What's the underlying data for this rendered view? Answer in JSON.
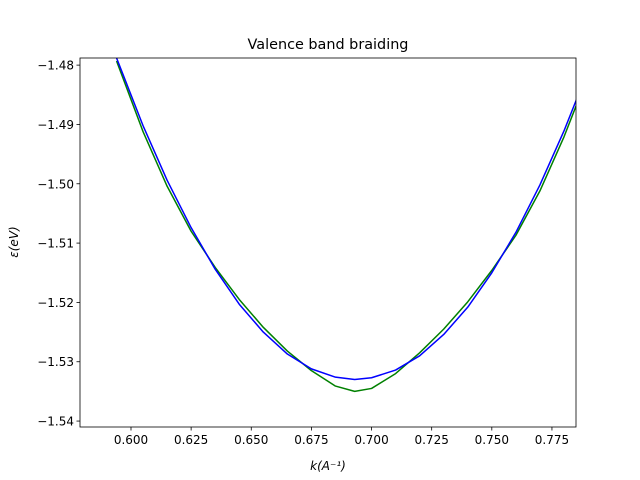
{
  "chart_data": {
    "type": "line",
    "title": "Valence band braiding",
    "xlabel": "k(A⁻¹)",
    "ylabel": "ε(eV)",
    "x": [
      0.594,
      0.605,
      0.615,
      0.625,
      0.635,
      0.645,
      0.655,
      0.665,
      0.675,
      0.685,
      0.693,
      0.7,
      0.71,
      0.72,
      0.73,
      0.74,
      0.75,
      0.76,
      0.77,
      0.78,
      0.791
    ],
    "series": [
      {
        "color": "#008000",
        "values": [
          -1.4793,
          -1.4912,
          -1.5004,
          -1.508,
          -1.5141,
          -1.5195,
          -1.5242,
          -1.5282,
          -1.5315,
          -1.5341,
          -1.535,
          -1.5345,
          -1.532,
          -1.5285,
          -1.5245,
          -1.5199,
          -1.5146,
          -1.5087,
          -1.5012,
          -1.4921,
          -1.4807
        ]
      },
      {
        "color": "#0000ff",
        "values": [
          -1.4788,
          -1.4902,
          -1.4994,
          -1.5074,
          -1.5144,
          -1.5203,
          -1.525,
          -1.5287,
          -1.5312,
          -1.5326,
          -1.533,
          -1.5327,
          -1.5314,
          -1.529,
          -1.5254,
          -1.5208,
          -1.515,
          -1.5082,
          -1.5002,
          -1.4911,
          -1.4799
        ]
      }
    ],
    "xlim": [
      0.5788,
      0.785
    ],
    "ylim": [
      -1.541,
      -1.4788
    ],
    "xticks": [
      {
        "value": 0.6,
        "label": "0.600"
      },
      {
        "value": 0.625,
        "label": "0.625"
      },
      {
        "value": 0.65,
        "label": "0.650"
      },
      {
        "value": 0.675,
        "label": "0.675"
      },
      {
        "value": 0.7,
        "label": "0.700"
      },
      {
        "value": 0.725,
        "label": "0.725"
      },
      {
        "value": 0.75,
        "label": "0.750"
      },
      {
        "value": 0.775,
        "label": "0.775"
      }
    ],
    "yticks": [
      {
        "value": -1.54,
        "label": "−1.54"
      },
      {
        "value": -1.53,
        "label": "−1.53"
      },
      {
        "value": -1.52,
        "label": "−1.52"
      },
      {
        "value": -1.51,
        "label": "−1.51"
      },
      {
        "value": -1.5,
        "label": "−1.50"
      },
      {
        "value": -1.49,
        "label": "−1.49"
      },
      {
        "value": -1.48,
        "label": "−1.48"
      }
    ]
  }
}
